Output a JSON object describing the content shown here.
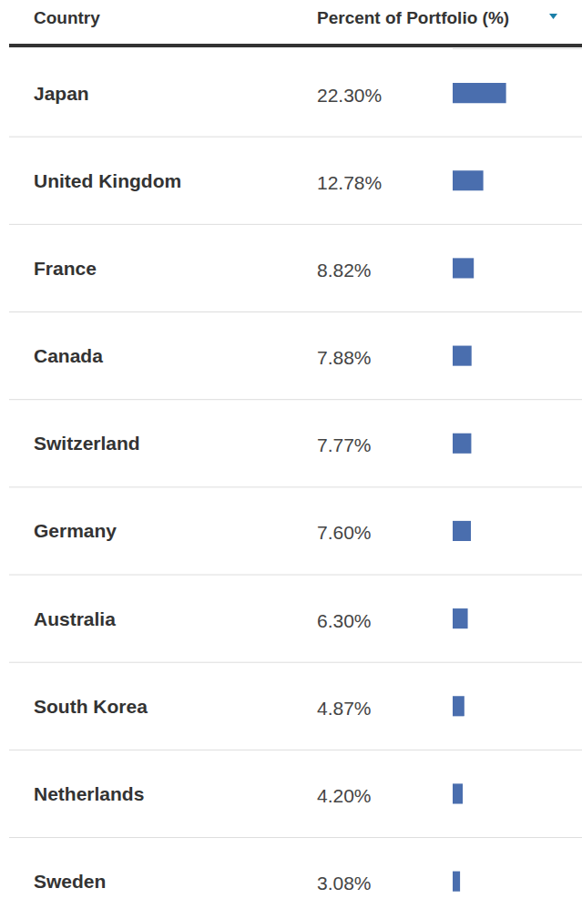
{
  "chart_data": {
    "type": "bar",
    "orientation": "horizontal",
    "ylabel": "Country",
    "xlabel": "Percent of Portfolio (%)",
    "categories": [
      "Japan",
      "United Kingdom",
      "France",
      "Canada",
      "Switzerland",
      "Germany",
      "Australia",
      "South Korea",
      "Netherlands",
      "Sweden"
    ],
    "values": [
      22.3,
      12.78,
      8.82,
      7.88,
      7.77,
      7.6,
      6.3,
      4.87,
      4.2,
      3.08
    ],
    "value_labels": [
      "22.30%",
      "12.78%",
      "8.82%",
      "7.88%",
      "7.77%",
      "7.60%",
      "6.30%",
      "4.87%",
      "4.20%",
      "3.08%"
    ],
    "color": "#4a6eae",
    "xlim": [
      0,
      54
    ],
    "xticks": [],
    "grid": false,
    "data_labels": true,
    "tick_labels": false
  }
}
